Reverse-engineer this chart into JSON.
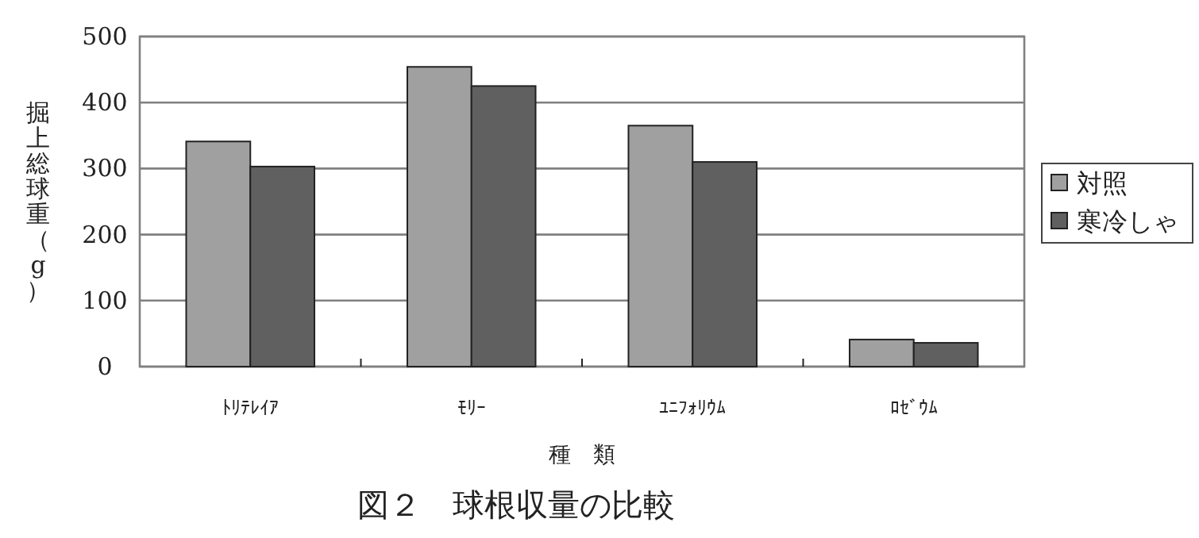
{
  "chart_data": {
    "type": "bar",
    "title": "図２　球根収量の比較",
    "xlabel": "種　類",
    "ylabel": "掘上総球重（g）",
    "categories": [
      "ﾄﾘﾃﾚｲｱ",
      "ﾓﾘｰ",
      "ﾕﾆﾌｫﾘｳﾑ",
      "ﾛｾﾞｳﾑ"
    ],
    "series": [
      {
        "name": "対照",
        "color": "#a0a0a0",
        "values": [
          341,
          454,
          365,
          41
        ]
      },
      {
        "name": "寒冷しゃ",
        "color": "#606060",
        "values": [
          303,
          425,
          310,
          36
        ]
      }
    ],
    "ylim": [
      0,
      500
    ],
    "yticks": [
      0,
      100,
      200,
      300,
      400,
      500
    ],
    "grid": "y",
    "legend": "right"
  }
}
